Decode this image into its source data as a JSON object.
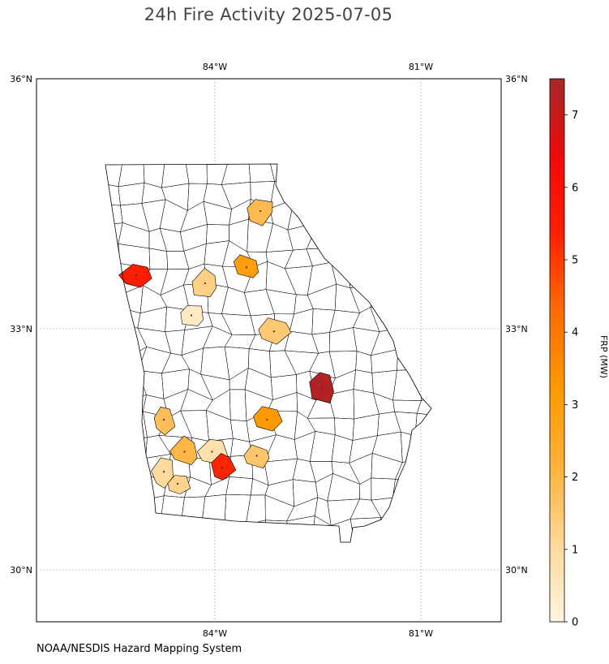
{
  "title": "24h Fire Activity 2025-07-05",
  "source": "NOAA/NESDIS Hazard Mapping System",
  "colorbar": {
    "label": "FRP (MW)",
    "min": 0,
    "max": 7.5,
    "ticks": [
      "0",
      "1",
      "2",
      "3",
      "4",
      "5",
      "6",
      "7"
    ],
    "colors": [
      "#fff5e0",
      "#ffd898",
      "#ffb13a",
      "#ff9a00",
      "#ff6c00",
      "#ff2000",
      "#ee0a0a",
      "#a52828"
    ]
  },
  "axes": {
    "lon_ticks": [
      "84°W",
      "81°W"
    ],
    "lat_ticks": [
      "36°N",
      "33°N",
      "30°N"
    ]
  },
  "state": "Georgia",
  "fires": [
    {
      "lon": -83.35,
      "lat": 34.35,
      "frp": 1.9
    },
    {
      "lon": -85.15,
      "lat": 33.55,
      "frp": 5.5
    },
    {
      "lon": -84.15,
      "lat": 33.45,
      "frp": 1.3
    },
    {
      "lon": -83.55,
      "lat": 33.65,
      "frp": 3.0
    },
    {
      "lon": -84.35,
      "lat": 33.05,
      "frp": 0.4
    },
    {
      "lon": -83.15,
      "lat": 32.85,
      "frp": 1.5
    },
    {
      "lon": -82.45,
      "lat": 32.15,
      "frp": 7.3
    },
    {
      "lon": -84.75,
      "lat": 31.75,
      "frp": 1.8
    },
    {
      "lon": -83.25,
      "lat": 31.75,
      "frp": 3.2
    },
    {
      "lon": -84.45,
      "lat": 31.35,
      "frp": 2.0
    },
    {
      "lon": -84.05,
      "lat": 31.35,
      "frp": 0.8
    },
    {
      "lon": -84.75,
      "lat": 31.1,
      "frp": 1.0
    },
    {
      "lon": -84.55,
      "lat": 30.95,
      "frp": 1.2
    },
    {
      "lon": -83.9,
      "lat": 31.15,
      "frp": 5.3
    },
    {
      "lon": -83.4,
      "lat": 31.3,
      "frp": 1.6
    }
  ]
}
